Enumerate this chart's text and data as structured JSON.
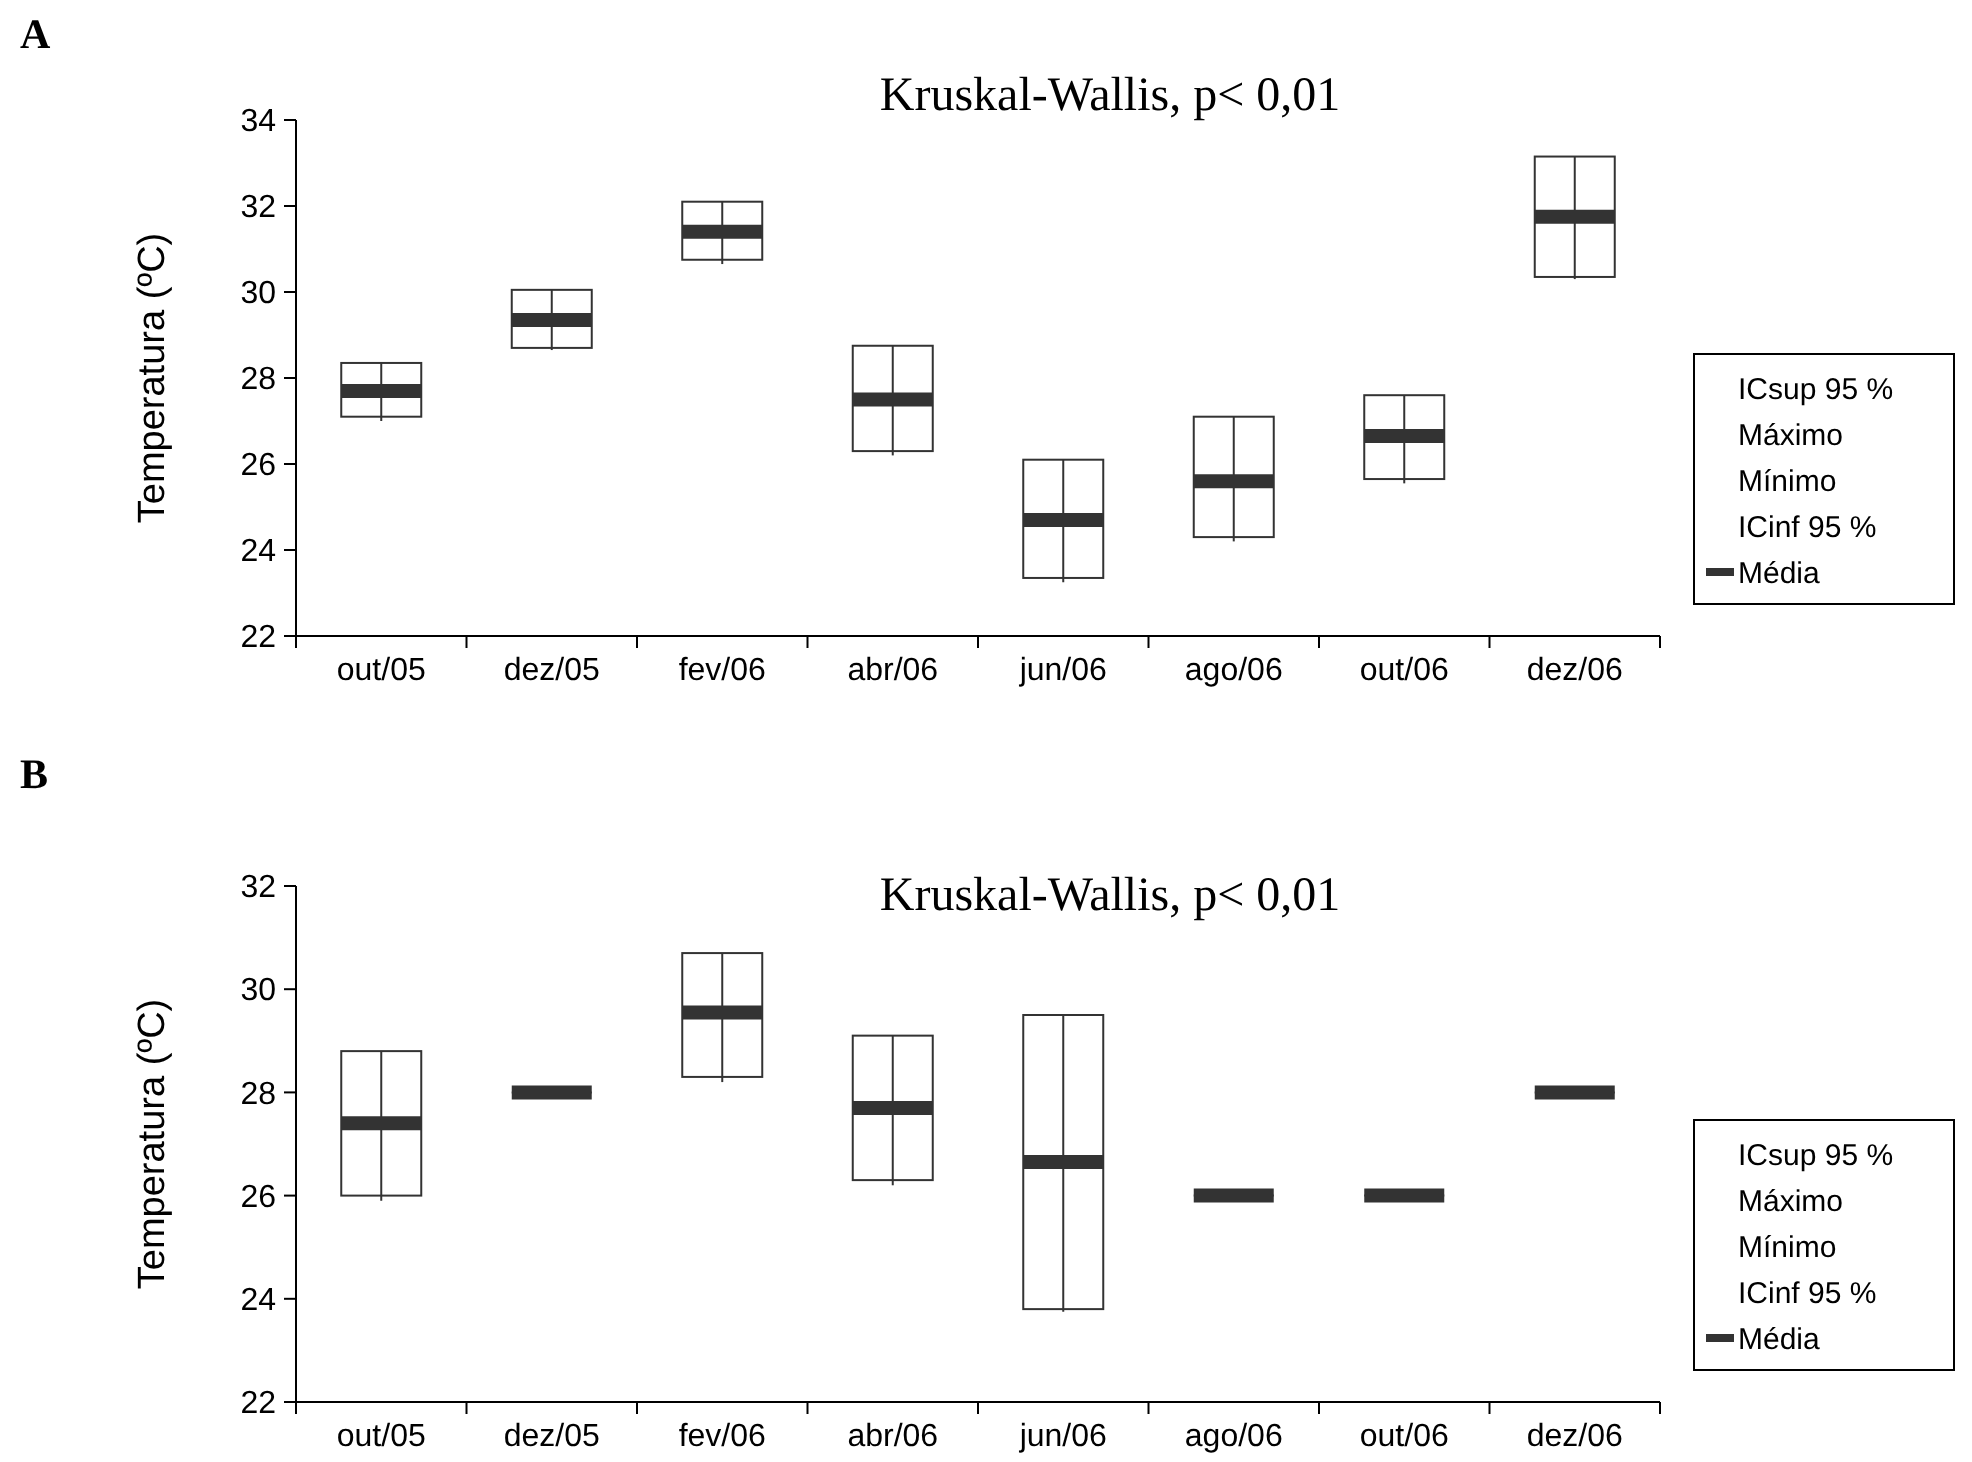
{
  "chart_data": [
    {
      "type": "box",
      "title": "Kruskal-Wallis, p< 0,01",
      "ylabel": "Temperatura (ºC)",
      "categories": [
        "out/05",
        "dez/05",
        "fev/06",
        "abr/06",
        "jun/06",
        "ago/06",
        "out/06",
        "dez/06"
      ],
      "ylim": [
        22,
        34
      ],
      "yticks": [
        22,
        24,
        26,
        28,
        30,
        32,
        34
      ],
      "legend": "right",
      "annotations": [
        "A",
        "ICsup 95 %",
        "Máximo",
        "Mínimo",
        "ICinf 95 %"
      ],
      "series": [
        {
          "name": "Média",
          "color": "#333333",
          "boxes": [
            {
              "low": 27.0,
              "q1": 27.1,
              "q3": 28.35,
              "high": 28.35,
              "mean": 27.7
            },
            {
              "low": 28.65,
              "q1": 28.7,
              "q3": 30.05,
              "high": 30.05,
              "mean": 29.35
            },
            {
              "low": 30.65,
              "q1": 30.75,
              "q3": 32.1,
              "high": 32.1,
              "mean": 31.4
            },
            {
              "low": 26.2,
              "q1": 26.3,
              "q3": 28.75,
              "high": 28.75,
              "mean": 27.5
            },
            {
              "low": 23.25,
              "q1": 23.35,
              "q3": 26.1,
              "high": 26.1,
              "mean": 24.7
            },
            {
              "low": 24.2,
              "q1": 24.3,
              "q3": 27.1,
              "high": 27.1,
              "mean": 25.6
            },
            {
              "low": 25.55,
              "q1": 25.65,
              "q3": 27.6,
              "high": 27.6,
              "mean": 26.65
            },
            {
              "low": 30.3,
              "q1": 30.35,
              "q3": 33.15,
              "high": 33.15,
              "mean": 31.75
            }
          ]
        }
      ]
    },
    {
      "type": "box",
      "title": "Kruskal-Wallis, p< 0,01",
      "ylabel": "Temperatura (ºC)",
      "categories": [
        "out/05",
        "dez/05",
        "fev/06",
        "abr/06",
        "jun/06",
        "ago/06",
        "out/06",
        "dez/06"
      ],
      "ylim": [
        22,
        32
      ],
      "yticks": [
        22,
        24,
        26,
        28,
        30,
        32
      ],
      "legend": "right",
      "annotations": [
        "B",
        "ICsup 95 %",
        "Máximo",
        "Mínimo",
        "ICinf 95 %"
      ],
      "series": [
        {
          "name": "Média",
          "color": "#333333",
          "boxes": [
            {
              "low": 25.9,
              "q1": 26.0,
              "q3": 28.8,
              "high": 28.8,
              "mean": 27.4
            },
            {
              "low": 28.0,
              "q1": 28.0,
              "q3": 28.0,
              "high": 28.0,
              "mean": 28.0
            },
            {
              "low": 28.2,
              "q1": 28.3,
              "q3": 30.7,
              "high": 30.7,
              "mean": 29.55
            },
            {
              "low": 26.2,
              "q1": 26.3,
              "q3": 29.1,
              "high": 29.1,
              "mean": 27.7
            },
            {
              "low": 23.75,
              "q1": 23.8,
              "q3": 29.5,
              "high": 29.5,
              "mean": 26.65
            },
            {
              "low": 26.0,
              "q1": 26.0,
              "q3": 26.0,
              "high": 26.0,
              "mean": 26.0
            },
            {
              "low": 26.0,
              "q1": 26.0,
              "q3": 26.0,
              "high": 26.0,
              "mean": 26.0
            },
            {
              "low": 28.0,
              "q1": 28.0,
              "q3": 28.0,
              "high": 28.0,
              "mean": 28.0
            }
          ]
        }
      ]
    }
  ]
}
